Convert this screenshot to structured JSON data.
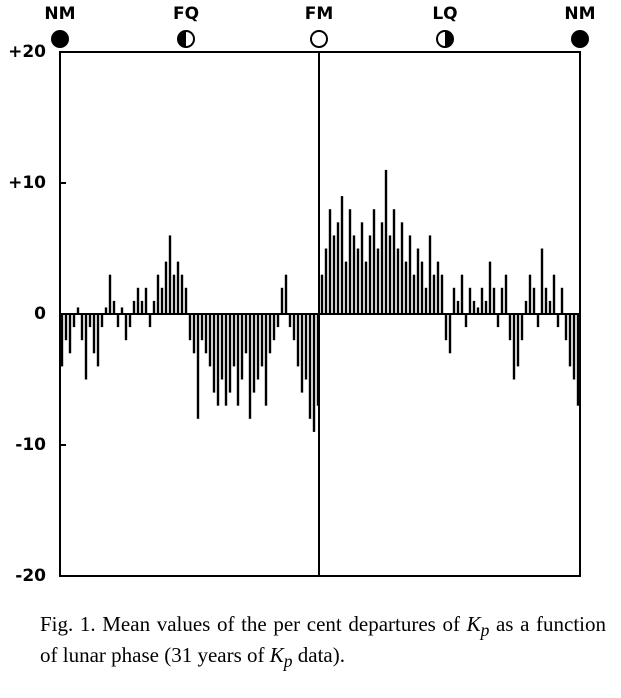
{
  "chart_data": {
    "type": "bar",
    "phases": [
      "NM",
      "FQ",
      "FM",
      "LQ",
      "NM"
    ],
    "values": [
      -4,
      -2,
      -3,
      -1,
      0.5,
      -2,
      -5,
      -1,
      -3,
      -4,
      -1,
      0.5,
      3,
      1,
      -1,
      0.5,
      -2,
      -1,
      1,
      2,
      1,
      2,
      -1,
      1,
      3,
      2,
      4,
      6,
      3,
      4,
      3,
      2,
      -2,
      -3,
      -8,
      -2,
      -3,
      -4,
      -6,
      -7,
      -5,
      -7,
      -6,
      -4,
      -7,
      -5,
      -3,
      -8,
      -6,
      -5,
      -4,
      -7,
      -3,
      -2,
      -1,
      2,
      3,
      -1,
      -2,
      -4,
      -6,
      -5,
      -8,
      -9,
      -7,
      3,
      5,
      8,
      6,
      7,
      9,
      4,
      8,
      6,
      5,
      7,
      4,
      6,
      8,
      5,
      7,
      11,
      6,
      8,
      5,
      7,
      4,
      6,
      3,
      5,
      4,
      2,
      6,
      3,
      4,
      3,
      -2,
      -3,
      2,
      1,
      3,
      -1,
      2,
      1,
      0.5,
      2,
      1,
      4,
      2,
      -1,
      2,
      3,
      -2,
      -5,
      -4,
      -2,
      1,
      3,
      2,
      -1,
      5,
      2,
      1,
      3,
      -1,
      2,
      -2,
      -4,
      -5,
      -7
    ],
    "color": "#000000",
    "ylim": [
      -20,
      20
    ],
    "yticks": [
      {
        "value": -20,
        "label": "-20"
      },
      -10,
      0,
      {
        "value": 10,
        "label": "+10"
      },
      {
        "value": 20,
        "label": "+20"
      }
    ]
  },
  "caption": [
    "Fig. 1.  Mean values of the per cent departures of ",
    "K",
    "p",
    " as a function of lunar phase (31 years of ",
    "K",
    "p",
    " data)."
  ]
}
